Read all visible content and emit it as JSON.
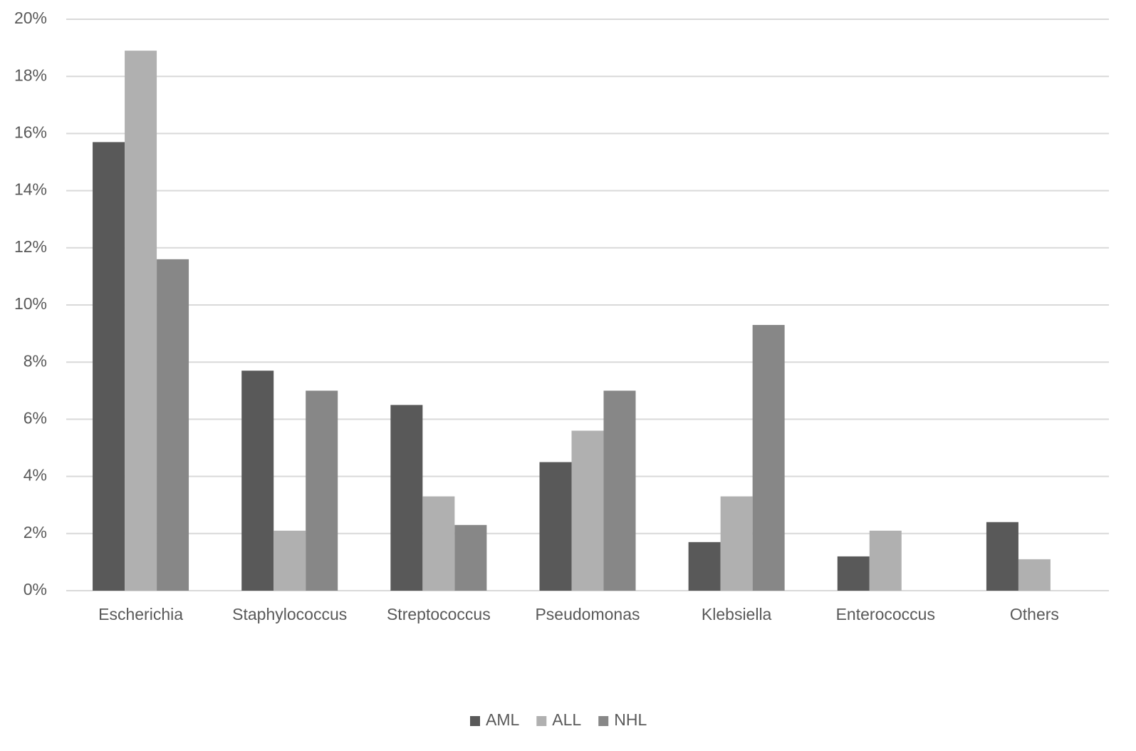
{
  "chart_data": {
    "type": "bar",
    "categories": [
      "Escherichia",
      "Staphylococcus",
      "Streptococcus",
      "Pseudomonas",
      "Klebsiella",
      "Enterococcus",
      "Others"
    ],
    "series": [
      {
        "name": "AML",
        "color": "#595959",
        "values": [
          15.7,
          7.7,
          6.5,
          4.5,
          1.7,
          1.2,
          2.4
        ]
      },
      {
        "name": "ALL",
        "color": "#b0b0b0",
        "values": [
          18.9,
          2.1,
          3.3,
          5.6,
          3.3,
          2.1,
          1.1
        ]
      },
      {
        "name": "NHL",
        "color": "#878787",
        "values": [
          11.6,
          7.0,
          2.3,
          7.0,
          9.3,
          0,
          0
        ]
      }
    ],
    "ylim": [
      0,
      20
    ],
    "yticks": [
      {
        "value": 0,
        "label": "0%"
      },
      {
        "value": 2,
        "label": "2%"
      },
      {
        "value": 4,
        "label": "4%"
      },
      {
        "value": 6,
        "label": "6%"
      },
      {
        "value": 8,
        "label": "8%"
      },
      {
        "value": 10,
        "label": "10%"
      },
      {
        "value": 12,
        "label": "12%"
      },
      {
        "value": 14,
        "label": "14%"
      },
      {
        "value": 16,
        "label": "16%"
      },
      {
        "value": 18,
        "label": "18%"
      },
      {
        "value": 20,
        "label": "20%"
      }
    ],
    "grid": true,
    "legend": "bottom"
  }
}
